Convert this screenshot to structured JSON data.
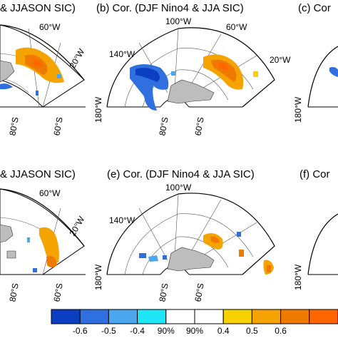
{
  "panels": [
    {
      "id": "a",
      "title": "& JJASON SIC)"
    },
    {
      "id": "b",
      "title": "(b)  Cor. (DJF Nino4 & JJA SIC)"
    },
    {
      "id": "c",
      "title": "(c)  Cor"
    },
    {
      "id": "d",
      "title": "& JJASON SIC)"
    },
    {
      "id": "e",
      "title": "(e)  Cor. (DJF Nino4 & JJA SIC)"
    },
    {
      "id": "f",
      "title": "(f)  Cor"
    }
  ],
  "map_labels": {
    "w100": "100°W",
    "w140": "140°W",
    "w60": "60°W",
    "w20": "20°W",
    "w180": "180°W",
    "s80": "80°S",
    "s60": "60°S"
  },
  "colorbar": {
    "colors": [
      "#0b3fc2",
      "#2f6fe0",
      "#4aa6ef",
      "#1ee6f4",
      "#ffffff",
      "#ffffff",
      "#f5d200",
      "#f5a300",
      "#ef7a00",
      "#ff6600"
    ],
    "labels": [
      "-0.6",
      "-0.5",
      "-0.4",
      "90%",
      "90%",
      "0.4",
      "0.5",
      "0.6"
    ]
  }
}
